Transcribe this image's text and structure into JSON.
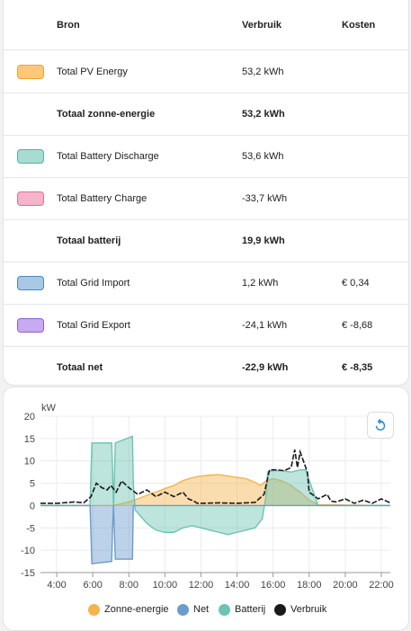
{
  "table": {
    "headers": {
      "source": "Bron",
      "usage": "Verbruik",
      "cost": "Kosten"
    },
    "rows": [
      {
        "name": "Total PV Energy",
        "usage": "53,2 kWh",
        "cost": "",
        "color": "#ffc878",
        "border": "#f0a030",
        "type": "item"
      },
      {
        "name": "Totaal zonne-energie",
        "usage": "53,2 kWh",
        "cost": "",
        "type": "total"
      },
      {
        "name": "Total Battery Discharge",
        "usage": "53,6 kWh",
        "cost": "",
        "color": "#a8dcd2",
        "border": "#4fb5a3",
        "type": "item"
      },
      {
        "name": "Total Battery Charge",
        "usage": "-33,7 kWh",
        "cost": "",
        "color": "#f7b3c9",
        "border": "#e0708f",
        "type": "item"
      },
      {
        "name": "Totaal batterij",
        "usage": "19,9 kWh",
        "cost": "",
        "type": "total"
      },
      {
        "name": "Total Grid Import",
        "usage": "1,2 kWh",
        "cost": "€ 0,34",
        "color": "#a8c8e4",
        "border": "#4f86bd",
        "type": "item"
      },
      {
        "name": "Total Grid Export",
        "usage": "-24,1 kWh",
        "cost": "€ -8,68",
        "color": "#c8aaf0",
        "border": "#8a5fd0",
        "type": "item"
      },
      {
        "name": "Totaal net",
        "usage": "-22,9 kWh",
        "cost": "€ -8,35",
        "type": "total"
      }
    ]
  },
  "chart": {
    "reload_icon": "reload-icon",
    "legend": [
      {
        "label": "Zonne-energie",
        "color": "#f5b34c"
      },
      {
        "label": "Net",
        "color": "#6b9ccd"
      },
      {
        "label": "Batterij",
        "color": "#6cc4b3"
      },
      {
        "label": "Verbruik",
        "color": "#1a1a1a"
      }
    ]
  },
  "chart_data": {
    "type": "area",
    "ylabel": "kW",
    "ylim": [
      -15,
      20
    ],
    "yticks": [
      20,
      15,
      10,
      5,
      0,
      -5,
      -10,
      -15
    ],
    "xlim": [
      3.1,
      22.5
    ],
    "xticks": [
      "4:00",
      "6:00",
      "8:00",
      "10:00",
      "12:00",
      "14:00",
      "16:00",
      "18:00",
      "20:00",
      "22:00"
    ],
    "grid": true,
    "legend_position": "bottom",
    "series": [
      {
        "name": "Zonne-energie",
        "color": "#f5b34c",
        "x": [
          3.1,
          6.0,
          6.5,
          7.0,
          7.5,
          8.0,
          8.5,
          9.0,
          9.5,
          10.0,
          10.5,
          11.0,
          11.5,
          12.0,
          12.5,
          13.0,
          13.5,
          14.0,
          14.5,
          15.0,
          15.3,
          15.6,
          16.0,
          16.5,
          17.0,
          17.5,
          18.0,
          18.5,
          22.5
        ],
        "y": [
          0,
          0,
          0,
          0,
          0.3,
          0.8,
          1.5,
          2.3,
          3.0,
          3.8,
          4.5,
          5.6,
          6.2,
          6.6,
          6.8,
          6.9,
          6.6,
          6.3,
          6.0,
          5.2,
          4.5,
          5.5,
          6.0,
          5.5,
          4.5,
          3.0,
          1.2,
          0.2,
          0
        ]
      },
      {
        "name": "Batterij",
        "color": "#6cc4b3",
        "x": [
          3.1,
          5.85,
          5.95,
          7.05,
          7.1,
          7.15,
          7.25,
          8.2,
          8.25,
          8.35,
          9.0,
          9.5,
          10.0,
          10.5,
          11.0,
          11.5,
          12.0,
          12.5,
          13.0,
          13.5,
          14.0,
          14.5,
          15.0,
          15.4,
          15.6,
          15.7,
          16.0,
          16.5,
          17.0,
          17.5,
          17.8,
          18.5,
          22.5
        ],
        "y": [
          0,
          0,
          14,
          14,
          8,
          -1,
          14,
          15.5,
          5,
          -1,
          -4,
          -5.5,
          -6,
          -6,
          -5,
          -4.5,
          -5,
          -5.5,
          -6,
          -6.5,
          -6,
          -5.5,
          -5,
          -3,
          2,
          7.5,
          7.8,
          7.8,
          7.5,
          8,
          8,
          0,
          0
        ]
      },
      {
        "name": "Net",
        "color": "#6b9ccd",
        "x": [
          3.1,
          5.85,
          5.95,
          7.05,
          7.1,
          7.15,
          7.25,
          8.2,
          8.25,
          22.5
        ],
        "y": [
          0,
          0,
          -13,
          -12.5,
          -5,
          0,
          -12,
          -12,
          0,
          0
        ]
      },
      {
        "name": "Verbruik",
        "color": "#1a1a1a",
        "x": [
          3.1,
          4.0,
          5.0,
          5.5,
          5.9,
          6.2,
          6.5,
          6.8,
          7.0,
          7.3,
          7.6,
          8.0,
          8.5,
          9.0,
          9.5,
          10.0,
          10.5,
          11.0,
          11.3,
          11.6,
          11.8,
          12.0,
          13.0,
          14.0,
          15.0,
          15.5,
          15.8,
          16.2,
          16.6,
          17.0,
          17.2,
          17.35,
          17.5,
          17.9,
          18.0,
          18.5,
          19.0,
          19.2,
          19.5,
          20.0,
          20.5,
          21.0,
          21.5,
          22.0,
          22.5
        ],
        "y": [
          0.5,
          0.5,
          0.8,
          0.6,
          2.0,
          5.0,
          4.0,
          3.5,
          4.5,
          3.0,
          5.5,
          4.0,
          2.5,
          3.5,
          2.0,
          3.0,
          2.0,
          3.0,
          1.5,
          1.0,
          0.5,
          0.5,
          0.6,
          0.5,
          0.7,
          2.5,
          8.0,
          8.0,
          7.8,
          8.5,
          12.5,
          8.5,
          12.0,
          7.5,
          3.0,
          1.5,
          2.5,
          1.0,
          0.8,
          1.5,
          0.5,
          1.2,
          0.5,
          1.5,
          0.6
        ]
      }
    ]
  }
}
